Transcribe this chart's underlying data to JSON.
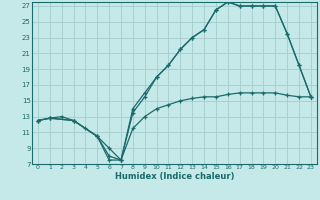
{
  "title": "",
  "xlabel": "Humidex (Indice chaleur)",
  "ylabel": "",
  "bg_color": "#c5e8e8",
  "line_color": "#1a6b6b",
  "grid_color": "#a8d0d0",
  "xlim": [
    -0.5,
    23.5
  ],
  "ylim": [
    7,
    27.5
  ],
  "xticks": [
    0,
    1,
    2,
    3,
    4,
    5,
    6,
    7,
    8,
    9,
    10,
    11,
    12,
    13,
    14,
    15,
    16,
    17,
    18,
    19,
    20,
    21,
    22,
    23
  ],
  "yticks": [
    7,
    9,
    11,
    13,
    15,
    17,
    19,
    21,
    23,
    25,
    27
  ],
  "line1_x": [
    0,
    1,
    2,
    3,
    4,
    5,
    6,
    7,
    8,
    9,
    10,
    11,
    12,
    13,
    14,
    15,
    16,
    17,
    18,
    19,
    20,
    21,
    22,
    23
  ],
  "line1_y": [
    12.5,
    12.8,
    13.0,
    12.5,
    11.5,
    10.5,
    7.5,
    7.5,
    11.5,
    13.0,
    14.0,
    14.5,
    15.0,
    15.3,
    15.5,
    15.5,
    15.8,
    16.0,
    16.0,
    16.0,
    16.0,
    15.7,
    15.5,
    15.5
  ],
  "line2_x": [
    0,
    1,
    3,
    5,
    6,
    7,
    8,
    9,
    10,
    11,
    12,
    13,
    14,
    15,
    16,
    17,
    18,
    19,
    20,
    21,
    22,
    23
  ],
  "line2_y": [
    12.5,
    12.8,
    12.5,
    10.5,
    9.0,
    7.5,
    13.5,
    15.5,
    18.0,
    19.5,
    21.5,
    23.0,
    24.0,
    26.5,
    27.5,
    27.0,
    27.0,
    27.0,
    27.0,
    23.5,
    19.5,
    15.5
  ],
  "line3_x": [
    0,
    1,
    3,
    5,
    6,
    7,
    8,
    9,
    10,
    11,
    12,
    13,
    14,
    15,
    16,
    17,
    18,
    19,
    20,
    21,
    22,
    23
  ],
  "line3_y": [
    12.5,
    12.8,
    12.5,
    10.5,
    8.0,
    7.5,
    14.0,
    16.0,
    18.0,
    19.5,
    21.5,
    23.0,
    24.0,
    26.5,
    27.5,
    27.0,
    27.0,
    27.0,
    27.0,
    23.5,
    19.5,
    15.5
  ]
}
